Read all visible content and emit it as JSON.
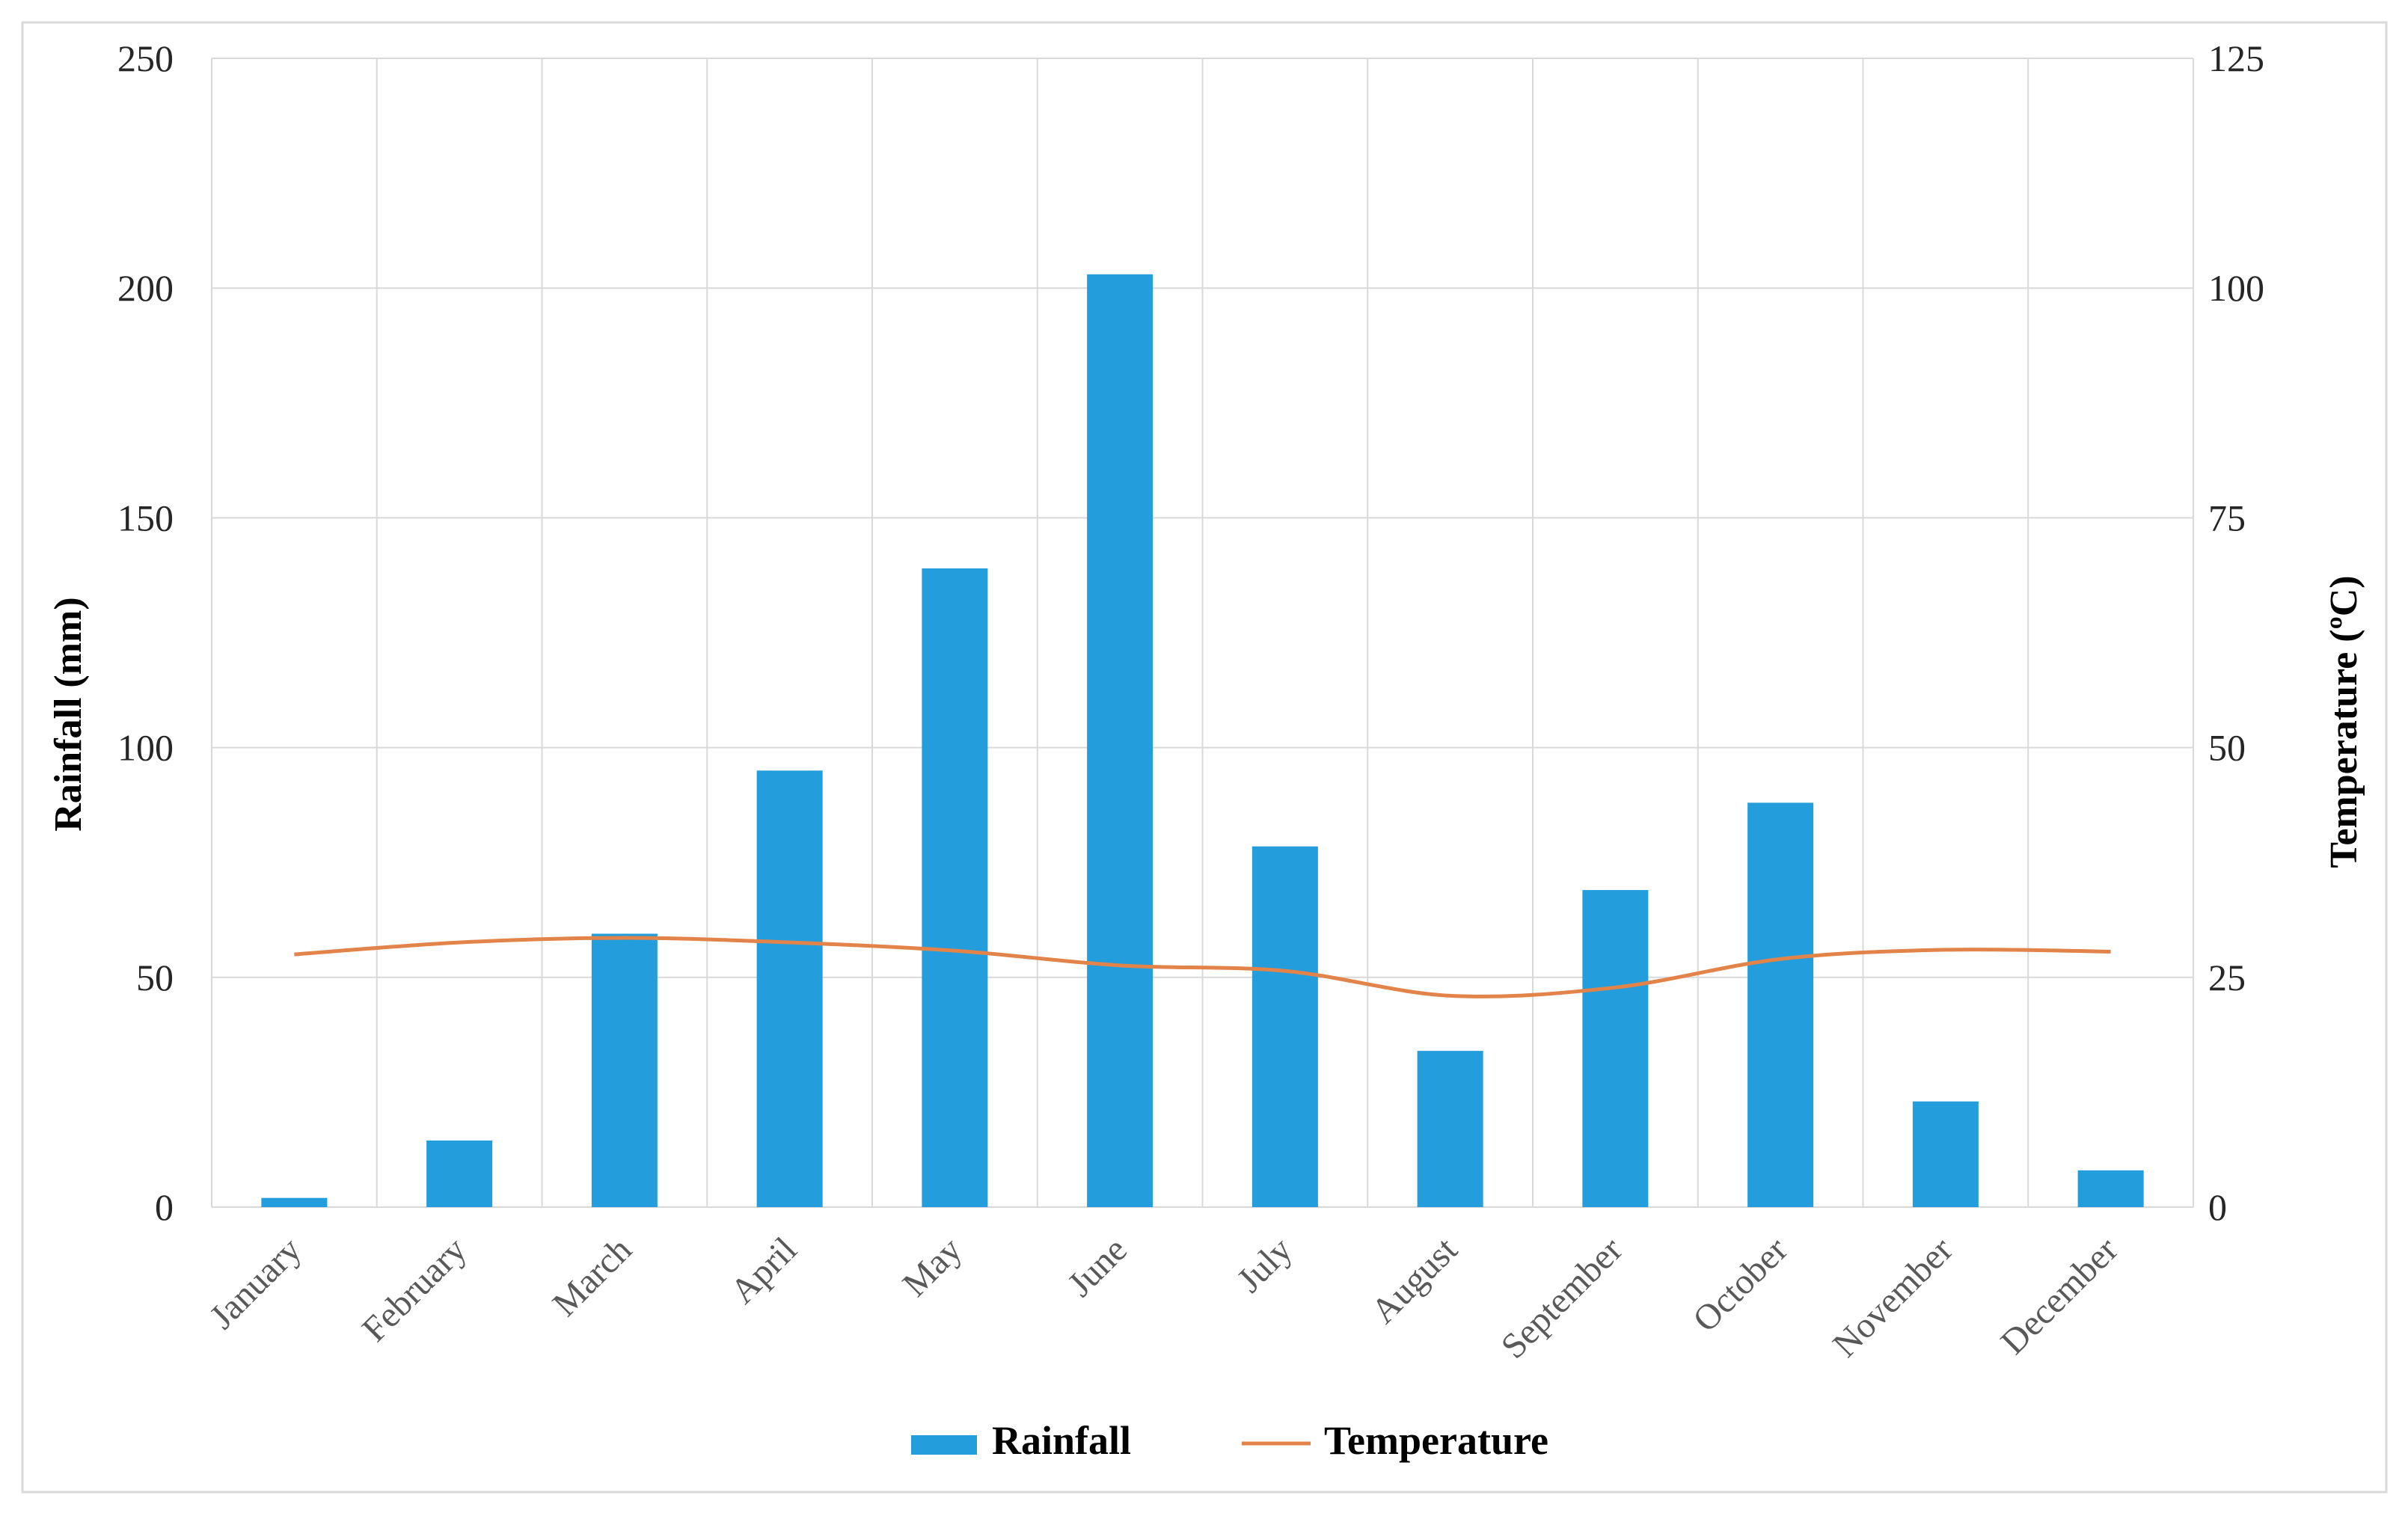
{
  "chart_data": {
    "type": "bar",
    "title": "",
    "categories": [
      "January",
      "February",
      "March",
      "April",
      "May",
      "June",
      "July",
      "August",
      "September",
      "October",
      "November",
      "December"
    ],
    "series": [
      {
        "name": "Rainfall",
        "type": "bar",
        "axis": "left",
        "color": "#239ddb",
        "values": [
          2,
          14.5,
          59.5,
          95,
          139,
          203,
          78.5,
          34,
          69,
          88,
          23,
          8
        ]
      },
      {
        "name": "Temperature",
        "type": "line",
        "axis": "right",
        "color": "#e2834a",
        "values": [
          27.5,
          28.8,
          29.3,
          28.8,
          27.9,
          26.3,
          25.7,
          23,
          23.9,
          27,
          28,
          27.8
        ]
      }
    ],
    "ylabel": "Rainfall (mm)",
    "ylabel_right": "Temperature (ºC)",
    "ylim": [
      0,
      250
    ],
    "ylim_right": [
      0,
      125
    ],
    "yticks": [
      "0",
      "50",
      "100",
      "150",
      "200",
      "250"
    ],
    "yticks_right": [
      "0",
      "25",
      "50",
      "75",
      "100",
      "125"
    ],
    "legend": {
      "position": "bottom",
      "items": [
        "Rainfall",
        "Temperature"
      ]
    },
    "grid": true
  }
}
